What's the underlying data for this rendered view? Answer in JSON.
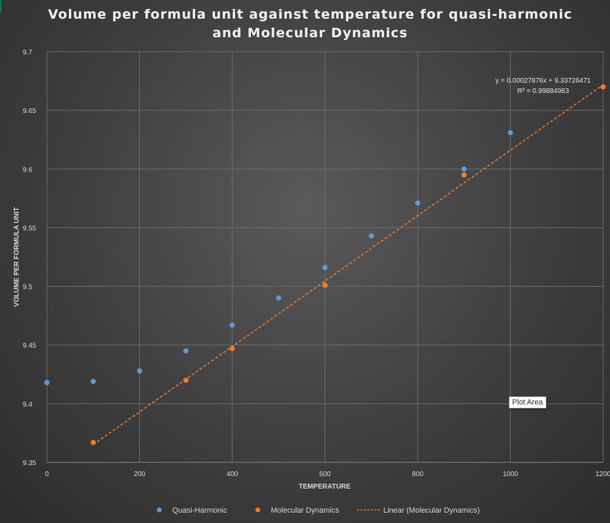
{
  "chart_data": {
    "type": "scatter",
    "title": "Volume per formula unit against temperature for quasi-harmonic and Molecular Dynamics",
    "xlabel": "TEMPERATURE",
    "ylabel": "VOLUME PER FORMULA UNIT",
    "xlim": [
      0,
      1200
    ],
    "ylim": [
      9.35,
      9.7
    ],
    "x_ticks": [
      "0",
      "200",
      "400",
      "600",
      "800",
      "1000",
      "1200"
    ],
    "y_ticks": [
      "9.35",
      "9.4",
      "9.45",
      "9.5",
      "9.55",
      "9.6",
      "9.65",
      "9.7"
    ],
    "grid": true,
    "legend_position": "bottom",
    "series": [
      {
        "name": "Quasi-Harmonic",
        "color": "#5b9bd5",
        "x": [
          0,
          100,
          200,
          300,
          400,
          500,
          600,
          700,
          800,
          900,
          1000
        ],
        "y": [
          9.418,
          9.419,
          9.428,
          9.445,
          9.467,
          9.49,
          9.516,
          9.543,
          9.571,
          9.6,
          9.631
        ]
      },
      {
        "name": "Molecular Dynamics",
        "color": "#ed7d31",
        "x": [
          100,
          300,
          400,
          600,
          900,
          1200
        ],
        "y": [
          9.367,
          9.42,
          9.447,
          9.501,
          9.595,
          9.67
        ]
      }
    ],
    "trendline": {
      "name": "Linear (Molecular Dynamics)",
      "color": "#ed7d31",
      "slope": 0.00027876,
      "intercept": 9.33726471,
      "x_range": [
        100,
        1200
      ],
      "equation": "y = 0.00027876x + 9.33726471",
      "r_squared": "R² = 0.99884983"
    },
    "tooltip": "Plot Area"
  }
}
